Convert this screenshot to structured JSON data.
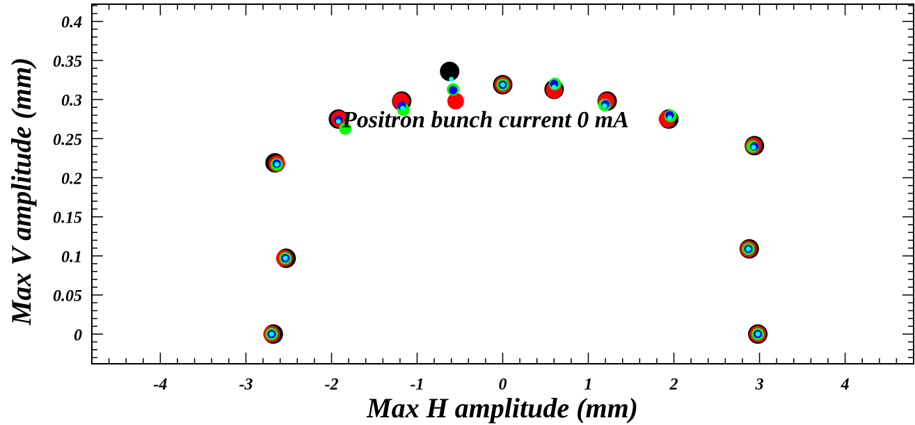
{
  "chart_data": {
    "type": "scatter",
    "title": "",
    "xlabel": "Max H amplitude (mm)",
    "ylabel": "Max V amplitude (mm)",
    "annotation": "Positron bunch current  0 mA",
    "xlim": [
      -4.8,
      4.8
    ],
    "ylim": [
      -0.038,
      0.422
    ],
    "x_ticks": [
      -4,
      -3,
      -2,
      -1,
      0,
      1,
      2,
      3,
      4
    ],
    "x_tick_labels": [
      "-4",
      "-3",
      "-2",
      "-1",
      "0",
      "1",
      "2",
      "3",
      "4"
    ],
    "y_ticks": [
      0,
      0.05,
      0.1,
      0.15,
      0.2,
      0.25,
      0.3,
      0.35,
      0.4
    ],
    "y_tick_labels": [
      "0",
      "0.05",
      "0.1",
      "0.15",
      "0.2",
      "0.25",
      "0.3",
      "0.35",
      "0.4"
    ],
    "grid": false,
    "series": [
      {
        "color": "#000000",
        "marker_size": "largest",
        "x": [
          -2.68,
          -2.53,
          -2.66,
          -1.92,
          -1.18,
          -0.62,
          0.0,
          0.6,
          1.22,
          1.94,
          2.94,
          2.88,
          2.98
        ],
        "y": [
          0.0,
          0.097,
          0.219,
          0.275,
          0.298,
          0.336,
          0.319,
          0.313,
          0.298,
          0.275,
          0.241,
          0.109,
          0.0
        ]
      },
      {
        "color": "#ff0000",
        "marker_size": "large",
        "x": [
          -2.7,
          -2.55,
          -2.64,
          -1.91,
          -1.19,
          -0.55,
          0.0,
          0.6,
          1.21,
          1.92,
          2.93,
          2.87,
          2.98
        ],
        "y": [
          0.0,
          0.097,
          0.218,
          0.275,
          0.298,
          0.298,
          0.319,
          0.312,
          0.298,
          0.275,
          0.241,
          0.109,
          0.0
        ]
      },
      {
        "color": "#00ff00",
        "marker_size": "medium",
        "x": [
          -2.7,
          -2.54,
          -2.64,
          -1.84,
          -1.16,
          -0.58,
          0.0,
          0.61,
          1.19,
          1.96,
          2.92,
          2.87,
          2.98
        ],
        "y": [
          0.0,
          0.097,
          0.217,
          0.263,
          0.287,
          0.313,
          0.319,
          0.32,
          0.293,
          0.279,
          0.24,
          0.109,
          0.0
        ]
      },
      {
        "color": "#0000ff",
        "marker_size": "small",
        "x": [
          -2.7,
          -2.54,
          -2.64,
          -1.92,
          -1.18,
          -0.58,
          0.0,
          0.6,
          1.2,
          1.95,
          2.94,
          2.87,
          2.98
        ],
        "y": [
          0.0,
          0.097,
          0.218,
          0.274,
          0.292,
          0.312,
          0.319,
          0.32,
          0.294,
          0.28,
          0.24,
          0.109,
          0.0
        ]
      },
      {
        "color": "#00ffff",
        "marker_size": "smallest",
        "x": [
          -2.7,
          -2.54,
          -2.64,
          -1.92,
          -1.17,
          -0.6,
          0.0,
          0.6,
          1.19,
          1.95,
          2.93,
          2.87,
          2.98
        ],
        "y": [
          0.0,
          0.097,
          0.217,
          0.272,
          0.289,
          0.326,
          0.319,
          0.316,
          0.292,
          0.277,
          0.239,
          0.109,
          0.0
        ]
      }
    ]
  }
}
